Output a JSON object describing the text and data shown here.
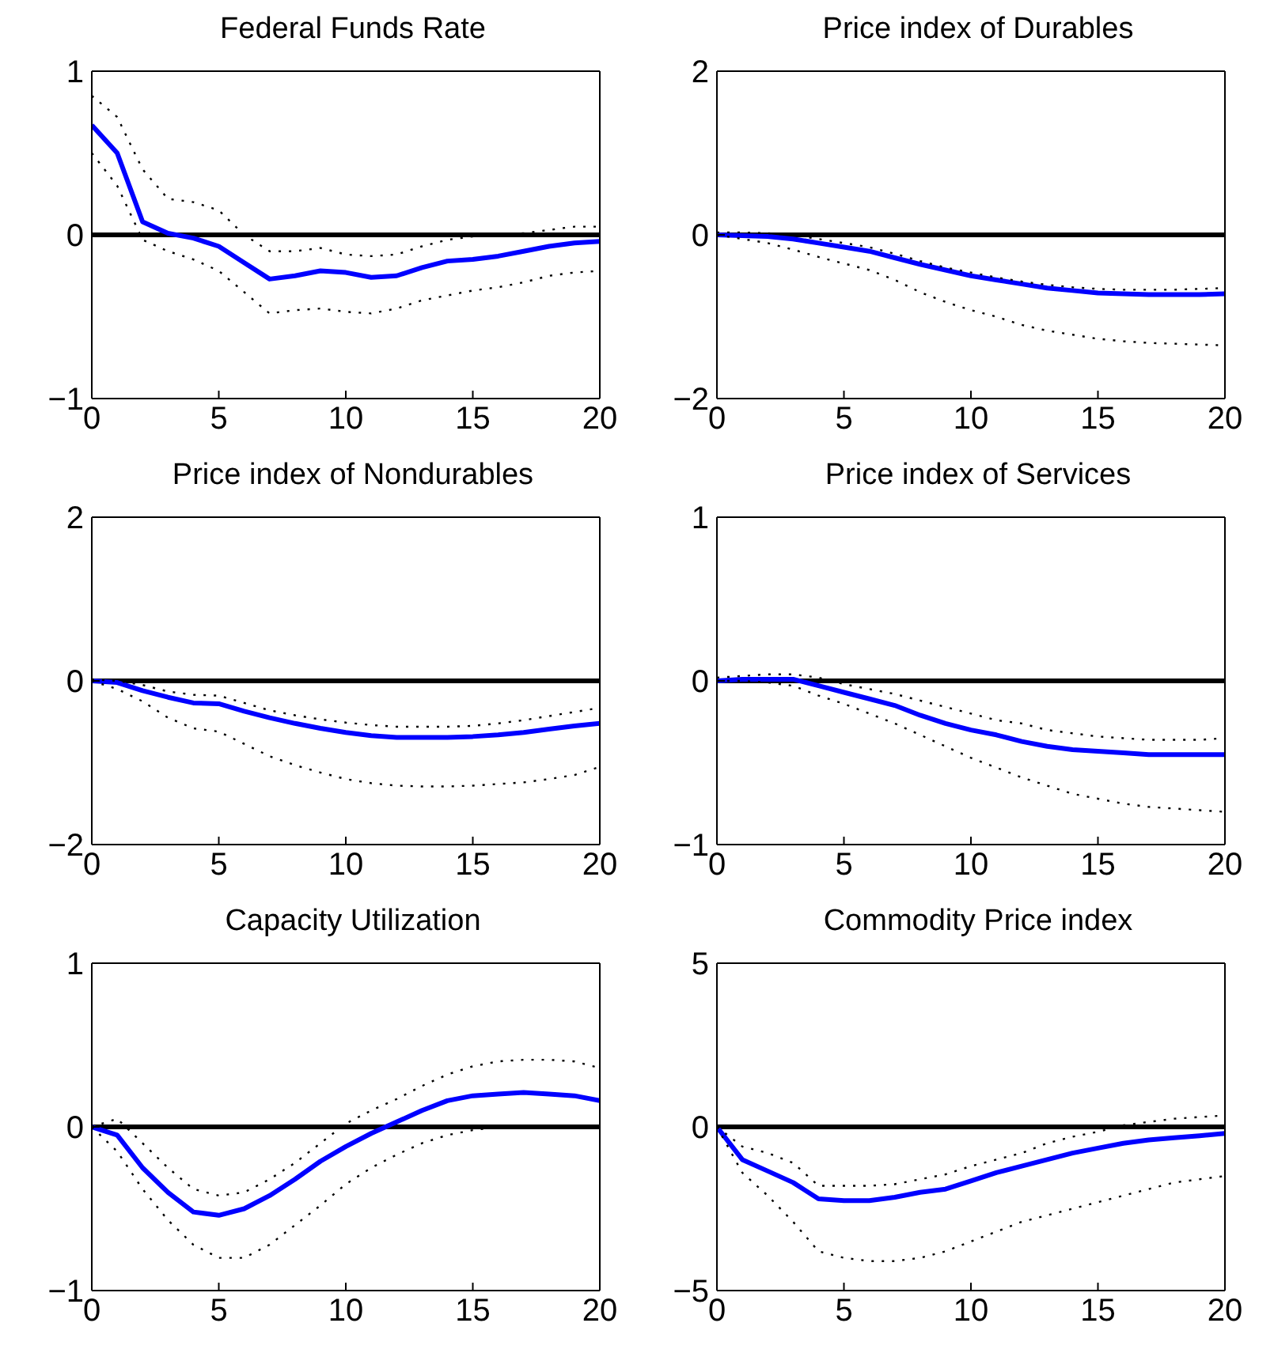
{
  "chart_data": [
    {
      "type": "line",
      "title": "Federal Funds Rate",
      "x": [
        0,
        1,
        2,
        3,
        4,
        5,
        6,
        7,
        8,
        9,
        10,
        11,
        12,
        13,
        14,
        15,
        16,
        17,
        18,
        19,
        20
      ],
      "xlim": [
        0,
        20
      ],
      "xticks": [
        0,
        5,
        10,
        15,
        20
      ],
      "ylim": [
        -1,
        1
      ],
      "yticks": [
        -1,
        0,
        1
      ],
      "ref_lines": [
        {
          "axis": "y",
          "value": 0,
          "color": "#000000"
        }
      ],
      "series": [
        {
          "color": "#0000ff",
          "line_style": "solid",
          "values": [
            0.67,
            0.5,
            0.08,
            0.01,
            -0.02,
            -0.07,
            -0.17,
            -0.27,
            -0.25,
            -0.22,
            -0.23,
            -0.26,
            -0.25,
            -0.2,
            -0.16,
            -0.15,
            -0.13,
            -0.1,
            -0.07,
            -0.05,
            -0.04
          ]
        },
        {
          "color": "#000000",
          "line_style": "dotted",
          "values": [
            0.85,
            0.72,
            0.4,
            0.22,
            0.2,
            0.15,
            0.0,
            -0.1,
            -0.1,
            -0.08,
            -0.12,
            -0.13,
            -0.12,
            -0.07,
            -0.03,
            -0.01,
            0.0,
            0.01,
            0.03,
            0.05,
            0.05
          ]
        },
        {
          "color": "#000000",
          "line_style": "dotted",
          "values": [
            0.5,
            0.3,
            -0.03,
            -0.1,
            -0.15,
            -0.22,
            -0.35,
            -0.48,
            -0.46,
            -0.45,
            -0.47,
            -0.48,
            -0.45,
            -0.4,
            -0.37,
            -0.34,
            -0.32,
            -0.29,
            -0.25,
            -0.23,
            -0.22
          ]
        }
      ]
    },
    {
      "type": "line",
      "title": "Price index of Durables",
      "x": [
        0,
        1,
        2,
        3,
        4,
        5,
        6,
        7,
        8,
        9,
        10,
        11,
        12,
        13,
        14,
        15,
        16,
        17,
        18,
        19,
        20
      ],
      "xlim": [
        0,
        20
      ],
      "xticks": [
        0,
        5,
        10,
        15,
        20
      ],
      "ylim": [
        -2,
        2
      ],
      "yticks": [
        -2,
        0,
        2
      ],
      "ref_lines": [
        {
          "axis": "y",
          "value": 0,
          "color": "#000000"
        }
      ],
      "series": [
        {
          "color": "#0000ff",
          "line_style": "solid",
          "values": [
            0,
            -0.01,
            -0.02,
            -0.05,
            -0.1,
            -0.15,
            -0.2,
            -0.28,
            -0.36,
            -0.43,
            -0.5,
            -0.55,
            -0.6,
            -0.65,
            -0.68,
            -0.71,
            -0.72,
            -0.73,
            -0.73,
            -0.73,
            -0.72
          ]
        },
        {
          "color": "#000000",
          "line_style": "dotted",
          "values": [
            0.03,
            0.03,
            0.02,
            0.0,
            -0.05,
            -0.1,
            -0.15,
            -0.23,
            -0.32,
            -0.4,
            -0.46,
            -0.52,
            -0.57,
            -0.61,
            -0.64,
            -0.66,
            -0.67,
            -0.67,
            -0.67,
            -0.66,
            -0.65
          ]
        },
        {
          "color": "#000000",
          "line_style": "dotted",
          "values": [
            0,
            -0.05,
            -0.1,
            -0.18,
            -0.27,
            -0.35,
            -0.43,
            -0.55,
            -0.7,
            -0.82,
            -0.92,
            -1.0,
            -1.1,
            -1.17,
            -1.22,
            -1.27,
            -1.3,
            -1.32,
            -1.33,
            -1.34,
            -1.35
          ]
        }
      ]
    },
    {
      "type": "line",
      "title": "Price index of Nondurables",
      "x": [
        0,
        1,
        2,
        3,
        4,
        5,
        6,
        7,
        8,
        9,
        10,
        11,
        12,
        13,
        14,
        15,
        16,
        17,
        18,
        19,
        20
      ],
      "xlim": [
        0,
        20
      ],
      "xticks": [
        0,
        5,
        10,
        15,
        20
      ],
      "ylim": [
        -2,
        2
      ],
      "yticks": [
        -2,
        0,
        2
      ],
      "ref_lines": [
        {
          "axis": "y",
          "value": 0,
          "color": "#000000"
        }
      ],
      "series": [
        {
          "color": "#0000ff",
          "line_style": "solid",
          "values": [
            0,
            -0.02,
            -0.12,
            -0.2,
            -0.27,
            -0.28,
            -0.37,
            -0.45,
            -0.52,
            -0.58,
            -0.63,
            -0.67,
            -0.69,
            -0.69,
            -0.69,
            -0.68,
            -0.66,
            -0.63,
            -0.59,
            -0.55,
            -0.52
          ]
        },
        {
          "color": "#000000",
          "line_style": "dotted",
          "values": [
            0.02,
            0.0,
            -0.05,
            -0.13,
            -0.17,
            -0.18,
            -0.27,
            -0.36,
            -0.42,
            -0.47,
            -0.51,
            -0.54,
            -0.56,
            -0.56,
            -0.56,
            -0.55,
            -0.52,
            -0.48,
            -0.43,
            -0.38,
            -0.33
          ]
        },
        {
          "color": "#000000",
          "line_style": "dotted",
          "values": [
            0,
            -0.1,
            -0.25,
            -0.45,
            -0.58,
            -0.62,
            -0.77,
            -0.92,
            -1.03,
            -1.12,
            -1.2,
            -1.25,
            -1.28,
            -1.29,
            -1.29,
            -1.28,
            -1.26,
            -1.24,
            -1.2,
            -1.15,
            -1.05
          ]
        }
      ]
    },
    {
      "type": "line",
      "title": "Price index of Services",
      "x": [
        0,
        1,
        2,
        3,
        4,
        5,
        6,
        7,
        8,
        9,
        10,
        11,
        12,
        13,
        14,
        15,
        16,
        17,
        18,
        19,
        20
      ],
      "xlim": [
        0,
        20
      ],
      "xticks": [
        0,
        5,
        10,
        15,
        20
      ],
      "ylim": [
        -1,
        1
      ],
      "yticks": [
        -1,
        0,
        1
      ],
      "ref_lines": [
        {
          "axis": "y",
          "value": 0,
          "color": "#000000"
        }
      ],
      "series": [
        {
          "color": "#0000ff",
          "line_style": "solid",
          "values": [
            0,
            0.01,
            0.01,
            0.01,
            -0.03,
            -0.07,
            -0.11,
            -0.15,
            -0.21,
            -0.26,
            -0.3,
            -0.33,
            -0.37,
            -0.4,
            -0.42,
            -0.43,
            -0.44,
            -0.45,
            -0.45,
            -0.45,
            -0.45
          ]
        },
        {
          "color": "#000000",
          "line_style": "dotted",
          "values": [
            0.02,
            0.03,
            0.04,
            0.04,
            0.02,
            -0.02,
            -0.05,
            -0.08,
            -0.12,
            -0.16,
            -0.2,
            -0.24,
            -0.26,
            -0.3,
            -0.32,
            -0.34,
            -0.35,
            -0.36,
            -0.36,
            -0.36,
            -0.35
          ]
        },
        {
          "color": "#000000",
          "line_style": "dotted",
          "values": [
            0,
            0.0,
            -0.01,
            -0.03,
            -0.09,
            -0.14,
            -0.2,
            -0.26,
            -0.33,
            -0.4,
            -0.47,
            -0.53,
            -0.59,
            -0.64,
            -0.69,
            -0.72,
            -0.75,
            -0.77,
            -0.78,
            -0.79,
            -0.8
          ]
        }
      ]
    },
    {
      "type": "line",
      "title": "Capacity Utilization",
      "x": [
        0,
        1,
        2,
        3,
        4,
        5,
        6,
        7,
        8,
        9,
        10,
        11,
        12,
        13,
        14,
        15,
        16,
        17,
        18,
        19,
        20
      ],
      "xlim": [
        0,
        20
      ],
      "xticks": [
        0,
        5,
        10,
        15,
        20
      ],
      "ylim": [
        -1,
        1
      ],
      "yticks": [
        -1,
        0,
        1
      ],
      "ref_lines": [
        {
          "axis": "y",
          "value": 0,
          "color": "#000000"
        }
      ],
      "series": [
        {
          "color": "#0000ff",
          "line_style": "solid",
          "values": [
            0,
            -0.05,
            -0.25,
            -0.4,
            -0.52,
            -0.54,
            -0.5,
            -0.42,
            -0.32,
            -0.21,
            -0.12,
            -0.04,
            0.03,
            0.1,
            0.16,
            0.19,
            0.2,
            0.21,
            0.2,
            0.19,
            0.16
          ]
        },
        {
          "color": "#000000",
          "line_style": "dotted",
          "values": [
            0,
            0.05,
            -0.1,
            -0.25,
            -0.38,
            -0.42,
            -0.4,
            -0.32,
            -0.22,
            -0.1,
            0.02,
            0.1,
            0.17,
            0.25,
            0.32,
            0.37,
            0.4,
            0.41,
            0.41,
            0.4,
            0.36
          ]
        },
        {
          "color": "#000000",
          "line_style": "dotted",
          "values": [
            0,
            -0.15,
            -0.38,
            -0.57,
            -0.72,
            -0.8,
            -0.8,
            -0.72,
            -0.6,
            -0.48,
            -0.35,
            -0.25,
            -0.17,
            -0.1,
            -0.05,
            -0.02,
            0.0,
            0.0,
            0.0,
            0.0,
            0.0
          ]
        }
      ]
    },
    {
      "type": "line",
      "title": "Commodity Price index",
      "x": [
        0,
        1,
        2,
        3,
        4,
        5,
        6,
        7,
        8,
        9,
        10,
        11,
        12,
        13,
        14,
        15,
        16,
        17,
        18,
        19,
        20
      ],
      "xlim": [
        0,
        20
      ],
      "xticks": [
        0,
        5,
        10,
        15,
        20
      ],
      "ylim": [
        -5,
        5
      ],
      "yticks": [
        -5,
        0,
        5
      ],
      "ref_lines": [
        {
          "axis": "y",
          "value": 0,
          "color": "#000000"
        }
      ],
      "series": [
        {
          "color": "#0000ff",
          "line_style": "solid",
          "values": [
            0,
            -1.0,
            -1.35,
            -1.7,
            -2.2,
            -2.25,
            -2.25,
            -2.15,
            -2.0,
            -1.9,
            -1.65,
            -1.4,
            -1.2,
            -1.0,
            -0.8,
            -0.65,
            -0.5,
            -0.4,
            -0.33,
            -0.27,
            -0.2
          ]
        },
        {
          "color": "#000000",
          "line_style": "dotted",
          "values": [
            0,
            -0.6,
            -0.8,
            -1.1,
            -1.8,
            -1.8,
            -1.8,
            -1.75,
            -1.6,
            -1.45,
            -1.2,
            -1.0,
            -0.8,
            -0.5,
            -0.3,
            -0.15,
            0.05,
            0.15,
            0.25,
            0.3,
            0.35
          ]
        },
        {
          "color": "#000000",
          "line_style": "dotted",
          "values": [
            0,
            -1.4,
            -2.1,
            -2.9,
            -3.8,
            -4.0,
            -4.1,
            -4.1,
            -4.0,
            -3.8,
            -3.5,
            -3.2,
            -2.9,
            -2.7,
            -2.5,
            -2.3,
            -2.1,
            -1.9,
            -1.7,
            -1.6,
            -1.5
          ]
        }
      ]
    }
  ]
}
